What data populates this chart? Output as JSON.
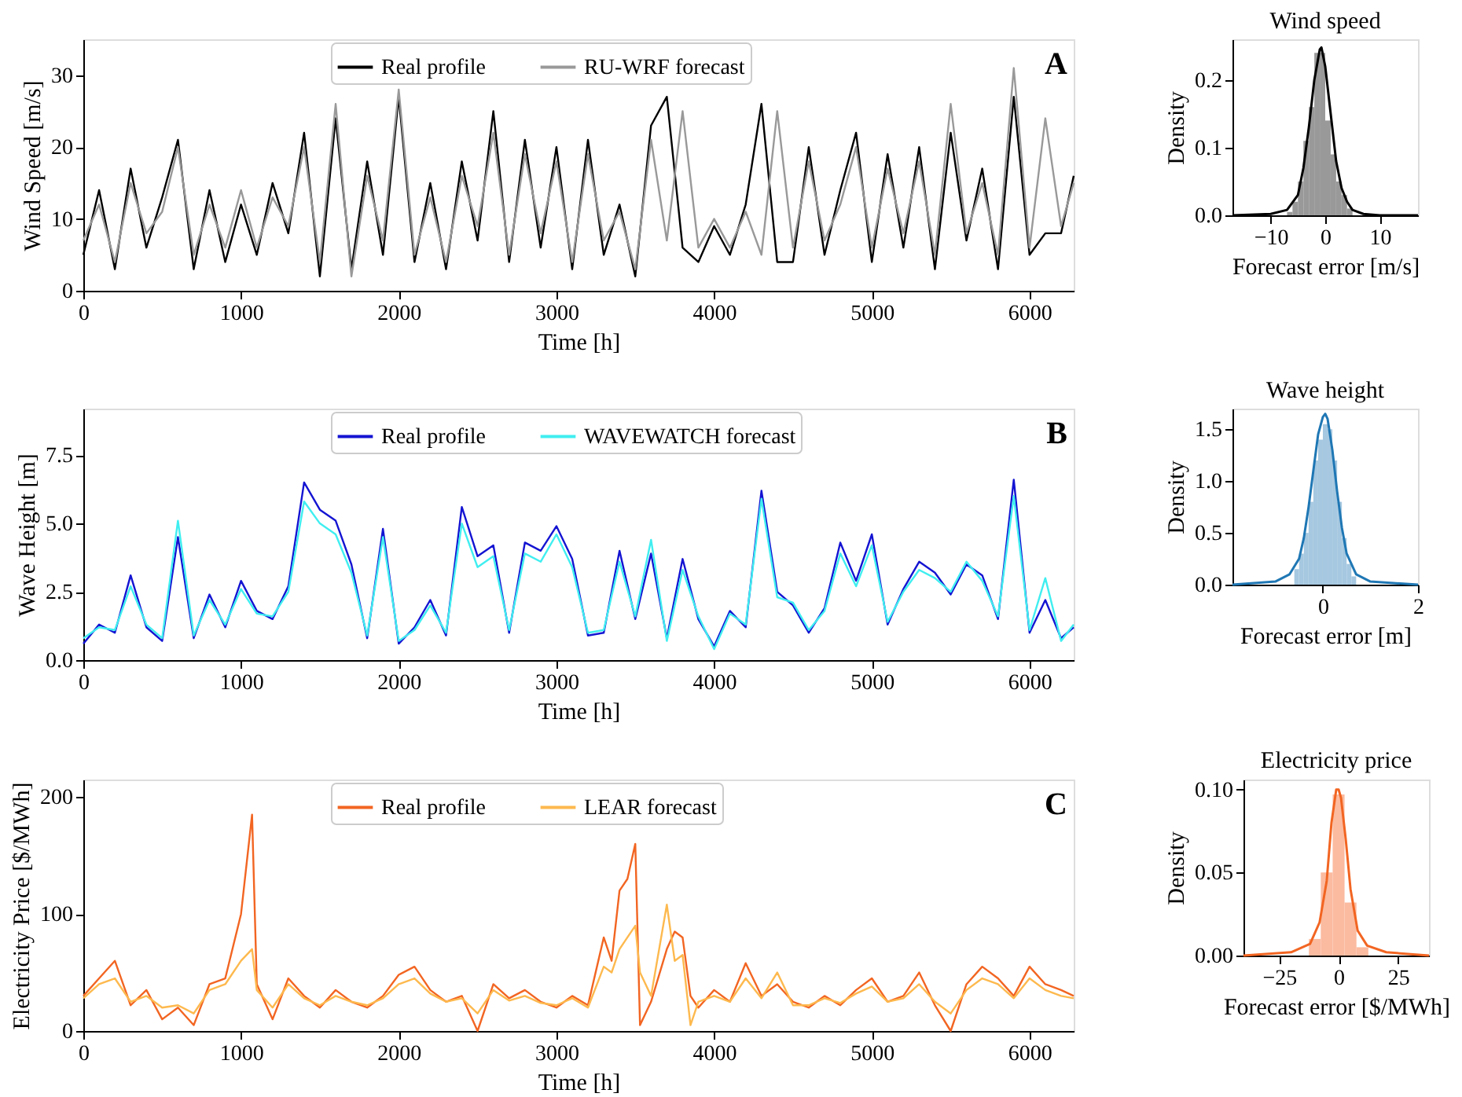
{
  "chart_data": [
    {
      "type": "line",
      "xlabel": "Time [h]",
      "ylabel": "Wind Speed [m/s]",
      "xlim": [
        0,
        6280
      ],
      "xticks": [
        0,
        1000,
        2000,
        3000,
        4000,
        5000,
        6000
      ],
      "ylim": [
        0,
        35
      ],
      "yticks": [
        0,
        10,
        20,
        30
      ],
      "legend": "top",
      "grid": false,
      "annotations": [
        "A"
      ],
      "x": [
        0,
        100,
        200,
        300,
        400,
        500,
        600,
        700,
        800,
        900,
        1000,
        1100,
        1200,
        1300,
        1400,
        1500,
        1600,
        1700,
        1800,
        1900,
        2000,
        2100,
        2200,
        2300,
        2400,
        2500,
        2600,
        2700,
        2800,
        2900,
        3000,
        3100,
        3200,
        3300,
        3400,
        3500,
        3600,
        3700,
        3800,
        3900,
        4000,
        4100,
        4200,
        4300,
        4400,
        4500,
        4600,
        4700,
        4800,
        4900,
        5000,
        5100,
        5200,
        5300,
        5400,
        5500,
        5600,
        5700,
        5800,
        5900,
        6000,
        6100,
        6200,
        6280
      ],
      "series": [
        {
          "name": "Real profile",
          "color": "#000000",
          "values": [
            5,
            14,
            3,
            17,
            6,
            13,
            21,
            3,
            14,
            4,
            12,
            5,
            15,
            8,
            22,
            2,
            24,
            3,
            18,
            5,
            27,
            4,
            15,
            3,
            18,
            7,
            25,
            4,
            21,
            6,
            20,
            3,
            21,
            5,
            12,
            2,
            23,
            27,
            6,
            4,
            9,
            5,
            12,
            26,
            4,
            4,
            20,
            5,
            14,
            22,
            4,
            19,
            6,
            20,
            3,
            22,
            7,
            17,
            3,
            27,
            5,
            8,
            8,
            16
          ]
        },
        {
          "name": "RU-WRF forecast",
          "color": "#999999",
          "values": [
            7,
            12,
            4,
            15,
            8,
            11,
            20,
            5,
            12,
            6,
            14,
            6,
            13,
            9,
            20,
            4,
            26,
            2,
            16,
            7,
            28,
            5,
            13,
            4,
            16,
            9,
            22,
            5,
            19,
            8,
            18,
            4,
            19,
            7,
            11,
            3,
            21,
            7,
            25,
            6,
            10,
            6,
            11,
            5,
            25,
            6,
            18,
            7,
            12,
            20,
            6,
            17,
            8,
            18,
            5,
            26,
            8,
            15,
            5,
            31,
            6,
            24,
            9,
            15
          ]
        }
      ]
    },
    {
      "type": "histogram",
      "title": "Wind speed",
      "xlabel": "Forecast error [m/s]",
      "ylabel": "Density",
      "xlim": [
        -17,
        17
      ],
      "xticks": [
        {
          "value": -10,
          "label": "−10"
        },
        0,
        10
      ],
      "ylim": [
        0,
        0.26
      ],
      "yticks": [
        {
          "value": 0,
          "label": "0.0"
        },
        0.1,
        0.2
      ],
      "grid": false,
      "color": "#999999",
      "bins": [
        -7,
        -6,
        -5,
        -4,
        -3,
        -2,
        -1,
        0,
        1,
        2,
        3,
        4,
        5
      ],
      "values": [
        0.005,
        0.02,
        0.05,
        0.11,
        0.16,
        0.24,
        0.24,
        0.14,
        0.09,
        0.05,
        0.03,
        0.01
      ],
      "series": [
        {
          "type": "line",
          "color": "#000000",
          "x": [
            -17,
            -10,
            -7,
            -5,
            -4,
            -3,
            -2,
            -1,
            -0.7,
            0,
            1,
            2,
            3,
            4,
            5,
            7,
            10,
            17
          ],
          "values": [
            0,
            0.002,
            0.008,
            0.03,
            0.07,
            0.13,
            0.2,
            0.245,
            0.248,
            0.22,
            0.15,
            0.08,
            0.04,
            0.02,
            0.008,
            0.002,
            0,
            0
          ]
        }
      ]
    },
    {
      "type": "line",
      "xlabel": "Time [h]",
      "ylabel": "Wave Height [m]",
      "xlim": [
        0,
        6280
      ],
      "xticks": [
        0,
        1000,
        2000,
        3000,
        4000,
        5000,
        6000
      ],
      "ylim": [
        0,
        9.2
      ],
      "yticks": [
        {
          "value": 0,
          "label": "0.0"
        },
        2.5,
        {
          "value": 5,
          "label": "5.0"
        },
        7.5
      ],
      "legend": "top",
      "grid": false,
      "annotations": [
        "B"
      ],
      "x": [
        0,
        100,
        200,
        300,
        400,
        500,
        600,
        700,
        800,
        900,
        1000,
        1100,
        1200,
        1300,
        1400,
        1500,
        1600,
        1700,
        1800,
        1900,
        2000,
        2100,
        2200,
        2300,
        2400,
        2500,
        2600,
        2700,
        2800,
        2900,
        3000,
        3100,
        3200,
        3300,
        3400,
        3500,
        3600,
        3700,
        3800,
        3900,
        4000,
        4100,
        4200,
        4300,
        4400,
        4500,
        4600,
        4700,
        4800,
        4900,
        5000,
        5100,
        5200,
        5300,
        5400,
        5500,
        5600,
        5700,
        5800,
        5900,
        6000,
        6100,
        6200,
        6280
      ],
      "series": [
        {
          "name": "Real profile",
          "color": "#1414d2",
          "values": [
            0.6,
            1.3,
            1.0,
            3.1,
            1.2,
            0.7,
            4.5,
            0.8,
            2.4,
            1.2,
            2.9,
            1.8,
            1.5,
            2.7,
            6.5,
            5.5,
            5.1,
            3.5,
            0.8,
            4.8,
            0.6,
            1.2,
            2.2,
            0.9,
            5.6,
            3.8,
            4.2,
            1.0,
            4.3,
            4.0,
            4.9,
            3.7,
            0.9,
            1.0,
            4.0,
            1.5,
            3.9,
            0.8,
            3.7,
            1.5,
            0.5,
            1.8,
            1.2,
            6.2,
            2.5,
            2.0,
            1.0,
            1.9,
            4.3,
            2.9,
            4.6,
            1.3,
            2.6,
            3.6,
            3.2,
            2.4,
            3.5,
            3.1,
            1.5,
            6.6,
            1.0,
            2.2,
            0.8,
            1.2
          ]
        },
        {
          "name": "WAVEWATCH forecast",
          "color": "#40eef0",
          "values": [
            0.8,
            1.2,
            1.1,
            2.7,
            1.3,
            0.8,
            5.1,
            0.9,
            2.2,
            1.3,
            2.6,
            1.7,
            1.6,
            2.5,
            5.8,
            5.0,
            4.6,
            3.2,
            0.9,
            4.5,
            0.7,
            1.1,
            2.0,
            1.0,
            5.0,
            3.4,
            3.8,
            1.1,
            3.9,
            3.6,
            4.6,
            3.4,
            1.0,
            1.1,
            3.6,
            1.6,
            4.4,
            0.7,
            3.3,
            1.6,
            0.4,
            1.7,
            1.3,
            5.9,
            2.3,
            2.1,
            1.1,
            1.8,
            3.9,
            2.7,
            4.2,
            1.4,
            2.5,
            3.3,
            3.0,
            2.5,
            3.6,
            2.9,
            1.6,
            6.0,
            1.1,
            3.0,
            0.7,
            1.3
          ]
        }
      ]
    },
    {
      "type": "histogram",
      "title": "Wave height",
      "xlabel": "Forecast error [m]",
      "ylabel": "Density",
      "xlim": [
        -1.9,
        2.0
      ],
      "xticks": [
        0,
        2
      ],
      "ylim": [
        0,
        1.7
      ],
      "yticks": [
        {
          "value": 0,
          "label": "0.0"
        },
        0.5,
        {
          "value": 1,
          "label": "1.0"
        },
        1.5
      ],
      "grid": false,
      "color": "#a6c8e0",
      "bins": [
        -0.6,
        -0.5,
        -0.4,
        -0.3,
        -0.2,
        -0.1,
        0,
        0.1,
        0.2,
        0.3,
        0.4,
        0.5,
        0.6,
        0.7
      ],
      "values": [
        0.15,
        0.3,
        0.5,
        0.8,
        1.2,
        1.4,
        1.55,
        1.5,
        1.2,
        0.8,
        0.45,
        0.2,
        0.08
      ],
      "series": [
        {
          "type": "line",
          "color": "#1f77b4",
          "x": [
            -1.9,
            -1,
            -0.7,
            -0.5,
            -0.4,
            -0.3,
            -0.2,
            -0.1,
            0,
            0.05,
            0.1,
            0.2,
            0.3,
            0.4,
            0.5,
            0.7,
            1,
            2
          ],
          "values": [
            0,
            0.03,
            0.1,
            0.25,
            0.45,
            0.75,
            1.1,
            1.45,
            1.62,
            1.65,
            1.6,
            1.3,
            0.9,
            0.55,
            0.3,
            0.1,
            0.03,
            0
          ]
        }
      ]
    },
    {
      "type": "line",
      "xlabel": "Time [h]",
      "ylabel": "Electricity Price [$/MWh]",
      "xlim": [
        0,
        6280
      ],
      "xticks": [
        0,
        1000,
        2000,
        3000,
        4000,
        5000,
        6000
      ],
      "ylim": [
        0,
        215
      ],
      "yticks": [
        0,
        100,
        200
      ],
      "legend": "top",
      "grid": false,
      "annotations": [
        "C"
      ],
      "x": [
        0,
        100,
        200,
        300,
        400,
        500,
        600,
        700,
        800,
        900,
        1000,
        1070,
        1100,
        1200,
        1300,
        1400,
        1500,
        1600,
        1700,
        1800,
        1900,
        2000,
        2100,
        2200,
        2300,
        2400,
        2500,
        2600,
        2700,
        2800,
        2900,
        3000,
        3100,
        3200,
        3300,
        3350,
        3400,
        3450,
        3500,
        3530,
        3600,
        3700,
        3750,
        3800,
        3850,
        3900,
        4000,
        4100,
        4200,
        4300,
        4400,
        4500,
        4600,
        4700,
        4800,
        4900,
        5000,
        5100,
        5200,
        5300,
        5400,
        5500,
        5600,
        5700,
        5800,
        5900,
        6000,
        6100,
        6200,
        6280
      ],
      "series": [
        {
          "name": "Real profile",
          "color": "#f26522",
          "values": [
            30,
            45,
            60,
            22,
            35,
            10,
            20,
            5,
            40,
            45,
            100,
            185,
            40,
            10,
            45,
            30,
            20,
            35,
            25,
            20,
            30,
            48,
            55,
            35,
            25,
            30,
            0,
            40,
            28,
            35,
            25,
            20,
            30,
            22,
            80,
            60,
            120,
            130,
            160,
            5,
            25,
            70,
            85,
            80,
            30,
            20,
            35,
            25,
            58,
            30,
            40,
            25,
            20,
            30,
            22,
            35,
            45,
            25,
            30,
            50,
            22,
            0,
            40,
            55,
            45,
            30,
            55,
            40,
            35,
            30
          ]
        },
        {
          "name": "LEAR forecast",
          "color": "#fdb94e",
          "values": [
            28,
            40,
            45,
            25,
            30,
            20,
            22,
            15,
            35,
            40,
            60,
            70,
            35,
            20,
            40,
            28,
            22,
            30,
            25,
            22,
            28,
            40,
            45,
            32,
            25,
            28,
            15,
            35,
            26,
            30,
            24,
            22,
            28,
            20,
            55,
            50,
            70,
            80,
            90,
            50,
            30,
            108,
            60,
            65,
            5,
            25,
            30,
            25,
            45,
            28,
            50,
            22,
            22,
            28,
            24,
            32,
            38,
            25,
            28,
            40,
            25,
            15,
            35,
            45,
            40,
            28,
            45,
            35,
            30,
            28
          ]
        }
      ]
    },
    {
      "type": "histogram",
      "title": "Electricity price",
      "xlabel": "Forecast error [$/MWh]",
      "ylabel": "Density",
      "xlim": [
        -40,
        38
      ],
      "xticks": [
        {
          "value": -25,
          "label": "−25"
        },
        0,
        25
      ],
      "ylim": [
        0,
        0.106
      ],
      "yticks": [
        {
          "value": 0,
          "label": "0.00"
        },
        0.05,
        {
          "value": 0.1,
          "label": "0.10"
        }
      ],
      "grid": false,
      "color": "#fbbba0",
      "bins": [
        -12.5,
        -7.5,
        -2.5,
        2.5,
        7.5,
        12.5
      ],
      "values": [
        0.01,
        0.05,
        0.097,
        0.032,
        0.005
      ],
      "series": [
        {
          "type": "line",
          "color": "#f26522",
          "x": [
            -40,
            -20,
            -12,
            -8,
            -5,
            -3,
            -1,
            0,
            1,
            3,
            5,
            8,
            12,
            20,
            38
          ],
          "values": [
            0,
            0.002,
            0.007,
            0.02,
            0.045,
            0.08,
            0.1,
            0.1,
            0.095,
            0.07,
            0.04,
            0.015,
            0.006,
            0.002,
            0
          ]
        }
      ]
    }
  ]
}
